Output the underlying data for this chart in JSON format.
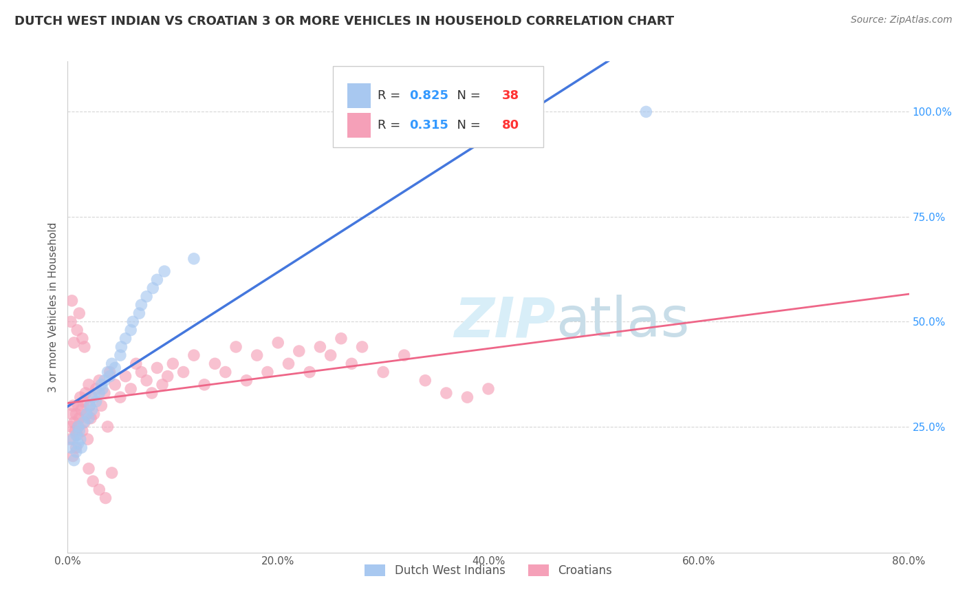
{
  "title": "DUTCH WEST INDIAN VS CROATIAN 3 OR MORE VEHICLES IN HOUSEHOLD CORRELATION CHART",
  "source": "Source: ZipAtlas.com",
  "ylabel": "3 or more Vehicles in Household",
  "x_tick_vals": [
    0.0,
    20.0,
    40.0,
    60.0,
    80.0
  ],
  "y_tick_vals": [
    25.0,
    50.0,
    75.0,
    100.0
  ],
  "xlim": [
    0.0,
    80.0
  ],
  "ylim": [
    -5.0,
    112.0
  ],
  "legend_label1": "Dutch West Indians",
  "legend_label2": "Croatians",
  "R1": "0.825",
  "N1": "38",
  "R2": "0.315",
  "N2": "80",
  "color_blue": "#A8C8F0",
  "color_pink": "#F5A0B8",
  "color_blue_line": "#4477DD",
  "color_pink_line": "#EE6688",
  "color_r_val": "#3399FF",
  "color_n_val": "#FF3333",
  "watermark_color": "#D8EEF8",
  "grid_color": "#CCCCCC",
  "background_color": "#FFFFFF",
  "dutch_x": [
    0.3,
    0.5,
    0.6,
    0.8,
    0.8,
    1.0,
    1.0,
    1.1,
    1.2,
    1.3,
    1.5,
    1.8,
    2.0,
    2.1,
    2.3,
    2.5,
    2.7,
    3.0,
    3.2,
    3.3,
    3.5,
    3.8,
    4.0,
    4.2,
    4.5,
    5.0,
    5.1,
    5.5,
    6.0,
    6.2,
    6.8,
    7.0,
    7.5,
    8.1,
    8.5,
    9.2,
    12.0,
    55.0
  ],
  "dutch_y": [
    20.0,
    22.0,
    17.0,
    23.0,
    19.0,
    25.0,
    21.0,
    24.0,
    22.0,
    20.0,
    26.0,
    28.0,
    27.0,
    30.0,
    29.0,
    32.0,
    31.0,
    33.0,
    35.0,
    34.0,
    36.0,
    38.0,
    37.0,
    40.0,
    39.0,
    42.0,
    44.0,
    46.0,
    48.0,
    50.0,
    52.0,
    54.0,
    56.0,
    58.0,
    60.0,
    62.0,
    65.0,
    100.0
  ],
  "croatian_x": [
    0.2,
    0.3,
    0.4,
    0.5,
    0.5,
    0.6,
    0.7,
    0.8,
    0.8,
    0.9,
    1.0,
    1.0,
    1.1,
    1.2,
    1.3,
    1.4,
    1.5,
    1.6,
    1.7,
    1.8,
    1.9,
    2.0,
    2.1,
    2.2,
    2.3,
    2.5,
    2.7,
    3.0,
    3.2,
    3.5,
    3.8,
    4.0,
    4.5,
    5.0,
    5.5,
    6.0,
    6.5,
    7.0,
    7.5,
    8.0,
    8.5,
    9.0,
    9.5,
    10.0,
    11.0,
    12.0,
    13.0,
    14.0,
    15.0,
    16.0,
    17.0,
    18.0,
    19.0,
    20.0,
    21.0,
    22.0,
    23.0,
    24.0,
    25.0,
    26.0,
    27.0,
    28.0,
    30.0,
    32.0,
    34.0,
    36.0,
    38.0,
    40.0,
    0.3,
    0.4,
    0.6,
    0.9,
    1.1,
    1.4,
    1.6,
    2.0,
    2.4,
    3.0,
    3.6,
    4.2
  ],
  "croatian_y": [
    22.0,
    25.0,
    28.0,
    30.0,
    18.0,
    26.0,
    24.0,
    28.0,
    20.0,
    23.0,
    25.0,
    30.0,
    27.0,
    32.0,
    29.0,
    24.0,
    31.0,
    26.0,
    33.0,
    28.0,
    22.0,
    35.0,
    30.0,
    27.0,
    32.0,
    28.0,
    34.0,
    36.0,
    30.0,
    33.0,
    25.0,
    38.0,
    35.0,
    32.0,
    37.0,
    34.0,
    40.0,
    38.0,
    36.0,
    33.0,
    39.0,
    35.0,
    37.0,
    40.0,
    38.0,
    42.0,
    35.0,
    40.0,
    38.0,
    44.0,
    36.0,
    42.0,
    38.0,
    45.0,
    40.0,
    43.0,
    38.0,
    44.0,
    42.0,
    46.0,
    40.0,
    44.0,
    38.0,
    42.0,
    36.0,
    33.0,
    32.0,
    34.0,
    50.0,
    55.0,
    45.0,
    48.0,
    52.0,
    46.0,
    44.0,
    15.0,
    12.0,
    10.0,
    8.0,
    14.0
  ]
}
